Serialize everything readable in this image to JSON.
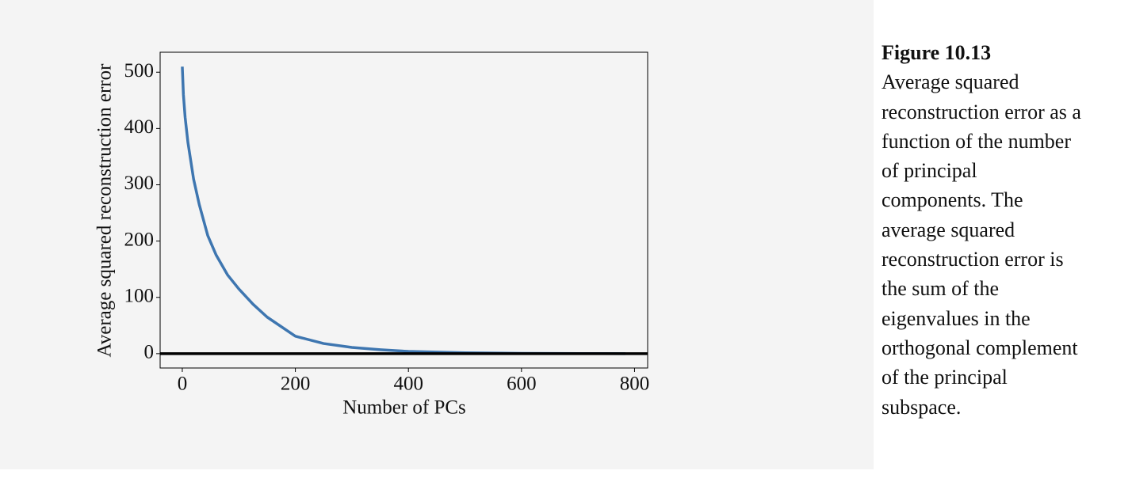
{
  "chart_data": {
    "type": "line",
    "xlabel": "Number of PCs",
    "ylabel": "Average squared reconstruction error",
    "x": [
      0,
      2,
      5,
      10,
      20,
      30,
      45,
      60,
      80,
      100,
      125,
      150,
      200,
      250,
      300,
      350,
      400,
      500,
      600,
      700,
      784
    ],
    "series": [
      {
        "color": "#3e76b0",
        "values": [
          510,
          460,
          420,
          375,
          310,
          265,
          210,
          175,
          140,
          115,
          88,
          65,
          31,
          18,
          11,
          7,
          4,
          1.5,
          0.5,
          0.2,
          0
        ]
      }
    ],
    "hline": 0,
    "hline_color": "#000000",
    "xlim": [
      -39.2,
      823.2
    ],
    "ylim": [
      -25.5,
      535.5
    ],
    "xticks": [
      0,
      200,
      400,
      600,
      800
    ],
    "yticks": [
      0,
      100,
      200,
      300,
      400,
      500
    ],
    "grid": false
  },
  "caption": {
    "label": "Figure 10.13",
    "text": "Average squared reconstruction error as a function of the number of principal components. The average squared reconstruction error is the sum of the eigenvalues in the orthogonal complement of the principal subspace."
  }
}
